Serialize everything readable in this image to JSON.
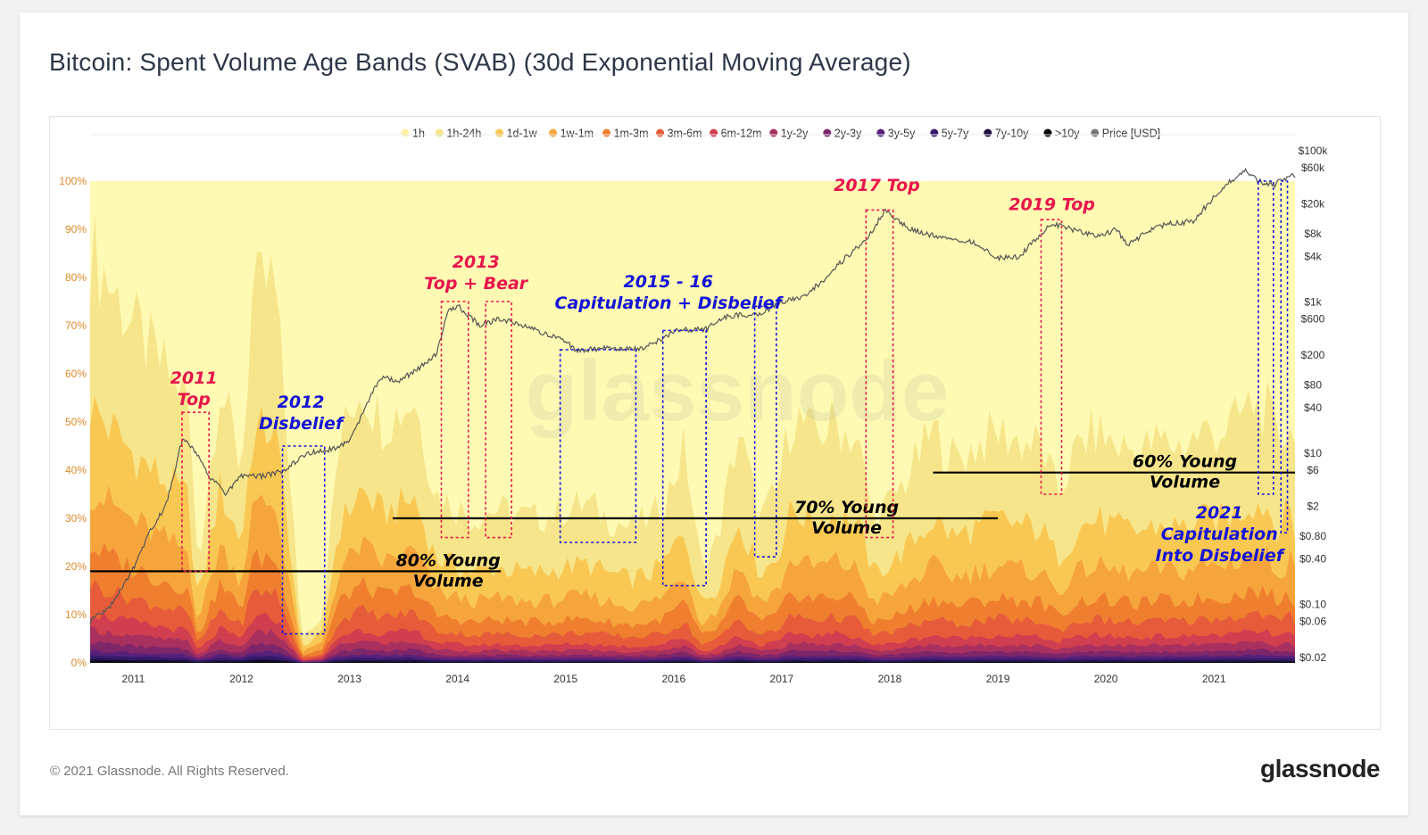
{
  "header": {
    "title": "Bitcoin: Spent Volume Age Bands (SVAB) (30d Exponential Moving Average)"
  },
  "footer": {
    "copyright": "© 2021 Glassnode. All Rights Reserved.",
    "brand": "glassnode"
  },
  "watermark": "glassnode",
  "colors": {
    "bands": [
      "#fefab4",
      "#f6e58a",
      "#f9c853",
      "#f6a43c",
      "#ef7f2f",
      "#e65c3a",
      "#cf3f4f",
      "#a8305f",
      "#7e266a",
      "#57207a",
      "#351a6b",
      "#1b103f",
      "#000000"
    ],
    "price": "#555555",
    "red_annotation": "#e8144c",
    "blue_annotation": "#1515d6"
  },
  "chart_data": {
    "type": "area",
    "stacked": true,
    "title": "Bitcoin: Spent Volume Age Bands (SVAB) (30d Exponential Moving Average)",
    "x_ticks": [
      "2011",
      "2012",
      "2013",
      "2014",
      "2015",
      "2016",
      "2017",
      "2018",
      "2019",
      "2020",
      "2021"
    ],
    "y_left_ticks": [
      "0%",
      "10%",
      "20%",
      "30%",
      "40%",
      "50%",
      "60%",
      "70%",
      "80%",
      "90%",
      "100%"
    ],
    "y_left_range": [
      0,
      100
    ],
    "y_right_ticks": [
      "$100k",
      "$60k",
      "$20k",
      "$8k",
      "$4k",
      "$1k",
      "$600",
      "$200",
      "$80",
      "$40",
      "$10",
      "$6",
      "$2",
      "$0.80",
      "$0.40",
      "$0.10",
      "$0.06",
      "$0.02"
    ],
    "y_right_scale": "log",
    "y_right_range": [
      0.02,
      100000
    ],
    "legend": [
      "1h",
      "1h-24h",
      "1d-1w",
      "1w-1m",
      "1m-3m",
      "3m-6m",
      "6m-12m",
      "1y-2y",
      "2y-3y",
      "3y-5y",
      "5y-7y",
      "7y-10y",
      ">10y",
      "Price [USD]"
    ],
    "legend_position": "top-right",
    "young_volume_x": [
      2010.6,
      2011.0,
      2011.25,
      2011.5,
      2011.6,
      2011.8,
      2012.0,
      2012.1,
      2012.3,
      2012.45,
      2012.55,
      2012.75,
      2012.9,
      2013.1,
      2013.3,
      2013.45,
      2013.6,
      2013.8,
      2013.95,
      2014.15,
      2014.35,
      2014.5,
      2014.7,
      2014.9,
      2015.0,
      2015.2,
      2015.4,
      2015.6,
      2015.8,
      2015.95,
      2016.1,
      2016.25,
      2016.4,
      2016.6,
      2016.8,
      2016.95,
      2017.1,
      2017.3,
      2017.5,
      2017.7,
      2017.85,
      2018.0,
      2018.2,
      2018.4,
      2018.6,
      2018.8,
      2019.0,
      2019.2,
      2019.4,
      2019.55,
      2019.75,
      2019.9,
      2020.1,
      2020.3,
      2020.5,
      2020.7,
      2020.9,
      2021.05,
      2021.2,
      2021.35,
      2021.5,
      2021.6,
      2021.7,
      2021.75
    ],
    "young_volume_pct": [
      86,
      70,
      62,
      55,
      20,
      58,
      40,
      75,
      80,
      40,
      5,
      10,
      45,
      58,
      50,
      52,
      55,
      35,
      33,
      30,
      32,
      31,
      30,
      31,
      32,
      33,
      30,
      28,
      30,
      35,
      45,
      20,
      25,
      48,
      30,
      35,
      52,
      47,
      50,
      46,
      30,
      33,
      40,
      48,
      42,
      45,
      48,
      46,
      45,
      35,
      45,
      48,
      45,
      44,
      46,
      45,
      48,
      48,
      50,
      54,
      52,
      44,
      52,
      44
    ],
    "price_x": [
      2010.6,
      2010.8,
      2011.0,
      2011.15,
      2011.3,
      2011.45,
      2011.55,
      2011.7,
      2011.85,
      2012.0,
      2012.2,
      2012.4,
      2012.6,
      2012.8,
      2013.0,
      2013.2,
      2013.3,
      2013.45,
      2013.6,
      2013.8,
      2013.92,
      2014.0,
      2014.2,
      2014.4,
      2014.6,
      2014.8,
      2015.0,
      2015.1,
      2015.4,
      2015.7,
      2015.9,
      2016.0,
      2016.3,
      2016.5,
      2016.8,
      2017.0,
      2017.2,
      2017.4,
      2017.6,
      2017.8,
      2017.95,
      2018.05,
      2018.2,
      2018.5,
      2018.8,
      2019.0,
      2019.2,
      2019.4,
      2019.5,
      2019.7,
      2019.9,
      2020.1,
      2020.2,
      2020.4,
      2020.6,
      2020.8,
      2020.95,
      2021.1,
      2021.3,
      2021.4,
      2021.55,
      2021.7
    ],
    "price_usd": [
      0.06,
      0.1,
      0.3,
      0.9,
      2,
      15,
      12,
      5,
      3,
      5,
      5,
      6,
      10,
      11,
      14,
      60,
      100,
      90,
      120,
      200,
      800,
      900,
      500,
      600,
      500,
      380,
      300,
      230,
      250,
      240,
      330,
      420,
      440,
      650,
      700,
      1000,
      1200,
      2000,
      4000,
      7000,
      16000,
      13000,
      9000,
      7000,
      6000,
      3800,
      4000,
      8000,
      11000,
      9000,
      7500,
      9000,
      5500,
      9000,
      11000,
      11500,
      20000,
      35000,
      55000,
      40000,
      35000,
      47000
    ],
    "annotations": [
      {
        "label": "2011 Top",
        "lines": [
          "2011",
          "Top"
        ],
        "color": "red",
        "x_range": [
          2011.45,
          2011.7
        ]
      },
      {
        "label": "2012 Disbelief",
        "lines": [
          "2012",
          "Disbelief"
        ],
        "color": "blue",
        "x_range": [
          2012.38,
          2012.77
        ]
      },
      {
        "label": "2013 Top + Bear",
        "lines": [
          "2013",
          "Top + Bear"
        ],
        "color": "red",
        "x_range": [
          2013.85,
          2014.35
        ]
      },
      {
        "label": "2015 - 16 Capitulation + Disbelief",
        "lines": [
          "2015 - 16",
          "Capitulation + Disbelief"
        ],
        "color": "blue",
        "x_range": [
          2014.95,
          2016.95
        ]
      },
      {
        "label": "2017 Top",
        "lines": [
          "2017 Top"
        ],
        "color": "red",
        "x_range": [
          2017.78,
          2018.03
        ]
      },
      {
        "label": "2019 Top",
        "lines": [
          "2019 Top"
        ],
        "color": "red",
        "x_range": [
          2019.4,
          2019.59
        ]
      },
      {
        "label": "2021 Capitulation Into Disbelief",
        "lines": [
          "2021",
          "Capitulation",
          "Into Disbelief"
        ],
        "color": "blue",
        "x_range": [
          2021.45,
          2021.68
        ]
      }
    ],
    "threshold_lines": [
      {
        "label": "80% Young Volume",
        "lines": [
          "80% Young",
          "Volume"
        ],
        "y_pct": 19
      },
      {
        "label": "70% Young Volume",
        "lines": [
          "70% Young",
          "Volume"
        ],
        "y_pct": 30
      },
      {
        "label": "60% Young Volume",
        "lines": [
          "60% Young",
          "Volume"
        ],
        "y_pct": 39.5
      }
    ]
  }
}
